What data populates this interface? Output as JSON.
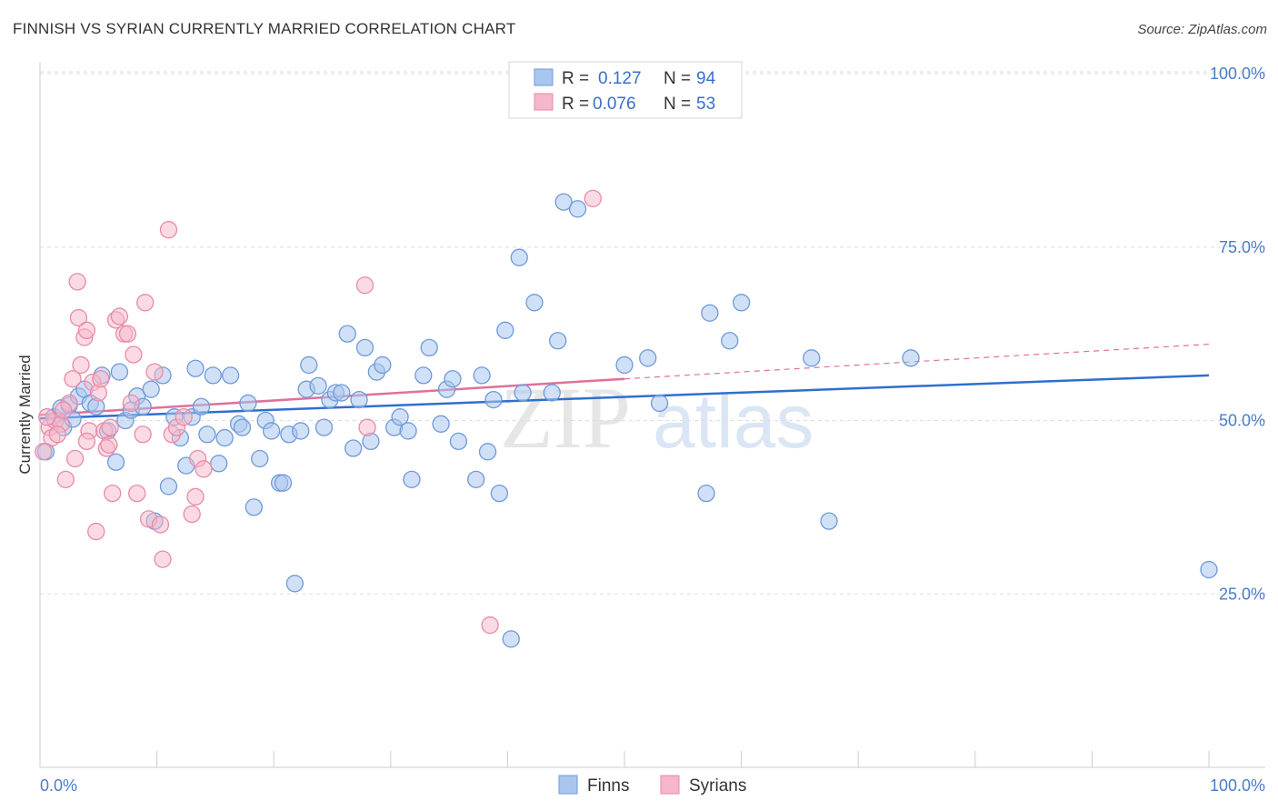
{
  "title": "FINNISH VS SYRIAN CURRENTLY MARRIED CORRELATION CHART",
  "source": "Source: ZipAtlas.com",
  "watermark": {
    "zip": "ZIP",
    "atlas": "atlas"
  },
  "colors": {
    "finns_fill": "#a9c6ef",
    "finns_stroke": "#6f9ad8",
    "finns_line": "#2f6fce",
    "syrians_fill": "#f5b7c9",
    "syrians_stroke": "#e98aa7",
    "syrians_line": "#e0709a",
    "grid": "#dddddd",
    "tick_text": "#4a7cc7"
  },
  "legend": {
    "rows": [
      {
        "r_label": "R =",
        "r_value": "0.127",
        "n_label": "N =",
        "n_value": "94"
      },
      {
        "r_label": "R =",
        "r_value": "0.076",
        "n_label": "N =",
        "n_value": "53"
      }
    ]
  },
  "bottom_legend": [
    "Finns",
    "Syrians"
  ],
  "chart_data": {
    "type": "scatter",
    "title": "FINNISH VS SYRIAN CURRENTLY MARRIED CORRELATION CHART",
    "xlabel": "",
    "ylabel": "Currently Married",
    "xlim": [
      0,
      100
    ],
    "ylim": [
      0,
      105
    ],
    "x_tick_labels": [
      "0.0%",
      "100.0%"
    ],
    "y_ticks": [
      25,
      50,
      75,
      100
    ],
    "y_tick_labels": [
      "25.0%",
      "50.0%",
      "75.0%",
      "100.0%"
    ],
    "grid": true,
    "legend_position": "top-center",
    "series": [
      {
        "name": "Finns",
        "trend": {
          "x": [
            0,
            100
          ],
          "y": [
            50.3,
            56.5
          ],
          "style": "solid"
        },
        "points": [
          [
            0.5,
            45.5
          ],
          [
            1.2,
            50.5
          ],
          [
            1.8,
            51.8
          ],
          [
            2.0,
            49.0
          ],
          [
            2.5,
            52.2
          ],
          [
            2.8,
            50.2
          ],
          [
            3.3,
            53.5
          ],
          [
            3.8,
            54.5
          ],
          [
            4.3,
            52.5
          ],
          [
            4.8,
            52.0
          ],
          [
            5.3,
            56.5
          ],
          [
            5.8,
            48.5
          ],
          [
            6.5,
            44.0
          ],
          [
            6.8,
            57.0
          ],
          [
            7.3,
            50.0
          ],
          [
            7.8,
            51.5
          ],
          [
            8.3,
            53.5
          ],
          [
            8.8,
            52.0
          ],
          [
            9.5,
            54.5
          ],
          [
            9.8,
            35.5
          ],
          [
            10.5,
            56.5
          ],
          [
            11.0,
            40.5
          ],
          [
            11.5,
            50.5
          ],
          [
            12.0,
            47.5
          ],
          [
            12.5,
            43.5
          ],
          [
            13.0,
            50.5
          ],
          [
            13.3,
            57.5
          ],
          [
            13.8,
            52.0
          ],
          [
            14.3,
            48.0
          ],
          [
            14.8,
            56.5
          ],
          [
            15.3,
            43.8
          ],
          [
            15.8,
            47.5
          ],
          [
            16.3,
            56.5
          ],
          [
            17.0,
            49.5
          ],
          [
            17.3,
            49.0
          ],
          [
            17.8,
            52.5
          ],
          [
            18.3,
            37.5
          ],
          [
            18.8,
            44.5
          ],
          [
            19.3,
            50.0
          ],
          [
            19.8,
            48.5
          ],
          [
            20.5,
            41.0
          ],
          [
            20.8,
            41.0
          ],
          [
            21.3,
            48.0
          ],
          [
            21.8,
            26.5
          ],
          [
            22.3,
            48.5
          ],
          [
            22.8,
            54.5
          ],
          [
            23.0,
            58.0
          ],
          [
            23.8,
            55.0
          ],
          [
            24.3,
            49.0
          ],
          [
            24.8,
            53.0
          ],
          [
            25.3,
            54.0
          ],
          [
            25.8,
            54.0
          ],
          [
            26.3,
            62.5
          ],
          [
            26.8,
            46.0
          ],
          [
            27.3,
            53.0
          ],
          [
            27.8,
            60.5
          ],
          [
            28.3,
            47.0
          ],
          [
            28.8,
            57.0
          ],
          [
            29.3,
            58.0
          ],
          [
            30.3,
            49.0
          ],
          [
            30.8,
            50.5
          ],
          [
            31.5,
            48.5
          ],
          [
            31.8,
            41.5
          ],
          [
            32.8,
            56.5
          ],
          [
            33.3,
            60.5
          ],
          [
            34.3,
            49.5
          ],
          [
            34.8,
            54.5
          ],
          [
            35.3,
            56.0
          ],
          [
            35.8,
            47.0
          ],
          [
            37.3,
            41.5
          ],
          [
            37.8,
            56.5
          ],
          [
            38.3,
            45.5
          ],
          [
            38.8,
            53.0
          ],
          [
            39.3,
            39.5
          ],
          [
            39.8,
            63.0
          ],
          [
            40.3,
            18.5
          ],
          [
            41.0,
            73.5
          ],
          [
            41.3,
            54.0
          ],
          [
            42.3,
            67.0
          ],
          [
            43.8,
            54.0
          ],
          [
            44.3,
            61.5
          ],
          [
            44.8,
            81.5
          ],
          [
            46.0,
            80.5
          ],
          [
            50.0,
            58.0
          ],
          [
            52.0,
            59.0
          ],
          [
            53.0,
            52.5
          ],
          [
            57.0,
            39.5
          ],
          [
            57.3,
            65.5
          ],
          [
            59.0,
            61.5
          ],
          [
            60.0,
            67.0
          ],
          [
            66.0,
            59.0
          ],
          [
            67.5,
            35.5
          ],
          [
            74.5,
            59.0
          ],
          [
            100.0,
            28.5
          ]
        ]
      },
      {
        "name": "Syrians",
        "trend": {
          "x": [
            0,
            50
          ],
          "y": [
            50.8,
            56.0
          ],
          "style": "solid",
          "dashed_extension": {
            "x": [
              50,
              100
            ],
            "y": [
              56.0,
              61.0
            ]
          }
        },
        "points": [
          [
            0.3,
            45.5
          ],
          [
            0.8,
            49.0
          ],
          [
            1.0,
            47.5
          ],
          [
            1.3,
            50.0
          ],
          [
            1.8,
            49.5
          ],
          [
            2.2,
            41.5
          ],
          [
            2.5,
            52.5
          ],
          [
            2.8,
            56.0
          ],
          [
            3.0,
            44.5
          ],
          [
            3.2,
            70.0
          ],
          [
            3.3,
            64.8
          ],
          [
            3.5,
            58.0
          ],
          [
            3.8,
            62.0
          ],
          [
            4.0,
            63.0
          ],
          [
            4.2,
            48.5
          ],
          [
            4.5,
            55.5
          ],
          [
            4.8,
            34.0
          ],
          [
            5.0,
            54.0
          ],
          [
            5.2,
            56.0
          ],
          [
            5.5,
            48.5
          ],
          [
            5.7,
            46.0
          ],
          [
            5.9,
            46.5
          ],
          [
            6.2,
            39.5
          ],
          [
            6.5,
            64.5
          ],
          [
            6.8,
            65.0
          ],
          [
            7.2,
            62.5
          ],
          [
            7.5,
            62.5
          ],
          [
            7.8,
            52.5
          ],
          [
            8.0,
            59.5
          ],
          [
            8.3,
            39.5
          ],
          [
            8.8,
            48.0
          ],
          [
            9.0,
            67.0
          ],
          [
            9.3,
            35.8
          ],
          [
            9.8,
            57.0
          ],
          [
            10.3,
            35.0
          ],
          [
            10.5,
            30.0
          ],
          [
            11.0,
            77.5
          ],
          [
            11.3,
            48.0
          ],
          [
            11.7,
            49.0
          ],
          [
            12.3,
            50.5
          ],
          [
            13.0,
            36.5
          ],
          [
            13.3,
            39.0
          ],
          [
            13.5,
            44.5
          ],
          [
            14.0,
            43.0
          ],
          [
            27.8,
            69.5
          ],
          [
            28.0,
            49.0
          ],
          [
            38.5,
            20.5
          ],
          [
            47.3,
            82.0
          ],
          [
            1.5,
            48.0
          ],
          [
            2.0,
            51.5
          ],
          [
            0.6,
            50.5
          ],
          [
            4.0,
            47.0
          ],
          [
            6.0,
            49.0
          ]
        ]
      }
    ]
  }
}
